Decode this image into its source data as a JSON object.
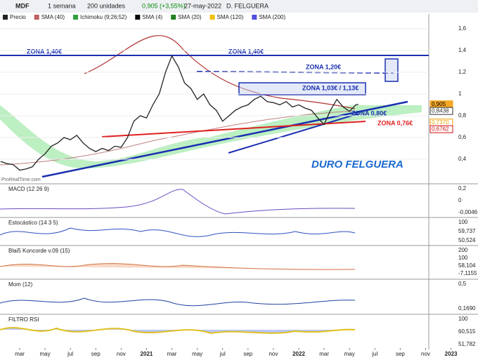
{
  "toolbar": {
    "symbol": "MDF",
    "period": "1 semana",
    "units": "200 unidades",
    "quote": "0,905 (+3,55%)",
    "date": "27-may-2022",
    "name": "D. FELGUERA"
  },
  "legend": [
    "Precio",
    "SMA (40)",
    "Ichimoku (9;26;52)",
    "SMA (4)",
    "SMA (20)",
    "SMA (120)",
    "SMA (200)"
  ],
  "chart_data": {
    "type": "line",
    "title": "DURO FELGUERA",
    "source": "ProRealTime.com",
    "x": [
      -1.5,
      -1,
      -0.5,
      0,
      0.5,
      1,
      1.5,
      2,
      2.5,
      3,
      3.5,
      4,
      4.5,
      5,
      5.5,
      6,
      6.5,
      7,
      7.5,
      8,
      8.5,
      9,
      9.5,
      10,
      10.5,
      11,
      11.5,
      12,
      12.5,
      13,
      13.5,
      14,
      14.5,
      15,
      15.5,
      16,
      16.5,
      17,
      17.5,
      18,
      18.5,
      19,
      19.5,
      20,
      20.5,
      21,
      21.5,
      22,
      22.5,
      23,
      23.5,
      24,
      24.5,
      25,
      25.5,
      26,
      26.5,
      26.7
    ],
    "series": [
      {
        "name": "Precio",
        "color": "#222222",
        "values": [
          0.38,
          0.36,
          0.35,
          0.3,
          0.31,
          0.33,
          0.4,
          0.45,
          0.52,
          0.55,
          0.6,
          0.58,
          0.62,
          0.55,
          0.5,
          0.47,
          0.5,
          0.48,
          0.52,
          0.51,
          0.6,
          0.75,
          0.8,
          0.78,
          0.9,
          1.0,
          1.2,
          1.35,
          1.25,
          1.1,
          1.05,
          0.95,
          1.0,
          0.9,
          0.85,
          0.75,
          0.8,
          0.85,
          0.88,
          0.9,
          0.95,
          0.98,
          0.93,
          0.92,
          0.9,
          0.93,
          0.88,
          0.9,
          0.87,
          0.85,
          0.78,
          0.72,
          0.85,
          0.95,
          0.88,
          0.84,
          0.9,
          0.905
        ]
      }
    ],
    "xlim": [
      -1.55,
      32.25
    ],
    "xticks": [
      {
        "value": 0,
        "label": "mar"
      },
      {
        "value": 2,
        "label": "may"
      },
      {
        "value": 4,
        "label": "jul"
      },
      {
        "value": 6,
        "label": "sep"
      },
      {
        "value": 8,
        "label": "nov"
      },
      {
        "value": 10,
        "label": "2021"
      },
      {
        "value": 12,
        "label": "mar"
      },
      {
        "value": 14,
        "label": "may"
      },
      {
        "value": 16,
        "label": "jul"
      },
      {
        "value": 18,
        "label": "sep"
      },
      {
        "value": 20,
        "label": "nov"
      },
      {
        "value": 22,
        "label": "2022"
      },
      {
        "value": 24,
        "label": "mar"
      },
      {
        "value": 26,
        "label": "may"
      },
      {
        "value": 28,
        "label": "jul"
      },
      {
        "value": 30,
        "label": "sep"
      },
      {
        "value": 32,
        "label": "nov"
      },
      {
        "value": 34,
        "label": "2023"
      }
    ],
    "ylim": [
      0.174,
      1.735
    ],
    "yticks": [
      {
        "value": 1.6,
        "label": "1,6"
      },
      {
        "value": 1.4,
        "label": "1,4"
      },
      {
        "value": 1.2,
        "label": "1,2"
      },
      1,
      {
        "value": 0.8,
        "label": "0,8"
      },
      {
        "value": 0.6,
        "label": "0,6"
      },
      {
        "value": 0.4,
        "label": "0,4"
      }
    ],
    "price_labels": [
      {
        "value": 0.905,
        "label": "0,905",
        "color": "#f5a623"
      },
      {
        "value": 0.8438,
        "label": "0,8438",
        "color": "#333333"
      },
      {
        "value": 0.737,
        "label": "0,7370",
        "color": "#f0a000"
      },
      {
        "value": 0.6762,
        "label": "0,6762",
        "color": "#d01010"
      }
    ],
    "annotations": [
      "ZONA 1,40€",
      "ZONA 1,40€",
      "ZONA 1,20€",
      "ZONA 1,03€ / 1,13€",
      "ZONA 0,80€",
      "ZONA 0,76€"
    ]
  },
  "panels": [
    {
      "title": "MACD (12 26 9)",
      "labels": [
        "0,2",
        "0",
        "-0,0046"
      ]
    },
    {
      "title": "Estocástico (14 3 5)",
      "labels": [
        "100",
        "59,737",
        "50,524"
      ]
    },
    {
      "title": "Blai5 Koncorde v.09 (15)",
      "labels": [
        "200",
        "100",
        "58,104",
        "-7,1155"
      ]
    },
    {
      "title": "Mom (12)",
      "labels": [
        "0,5",
        "0,1690"
      ]
    },
    {
      "title": "FILTRO RSI",
      "labels": [
        "100",
        "60,515",
        "51,782"
      ]
    }
  ]
}
